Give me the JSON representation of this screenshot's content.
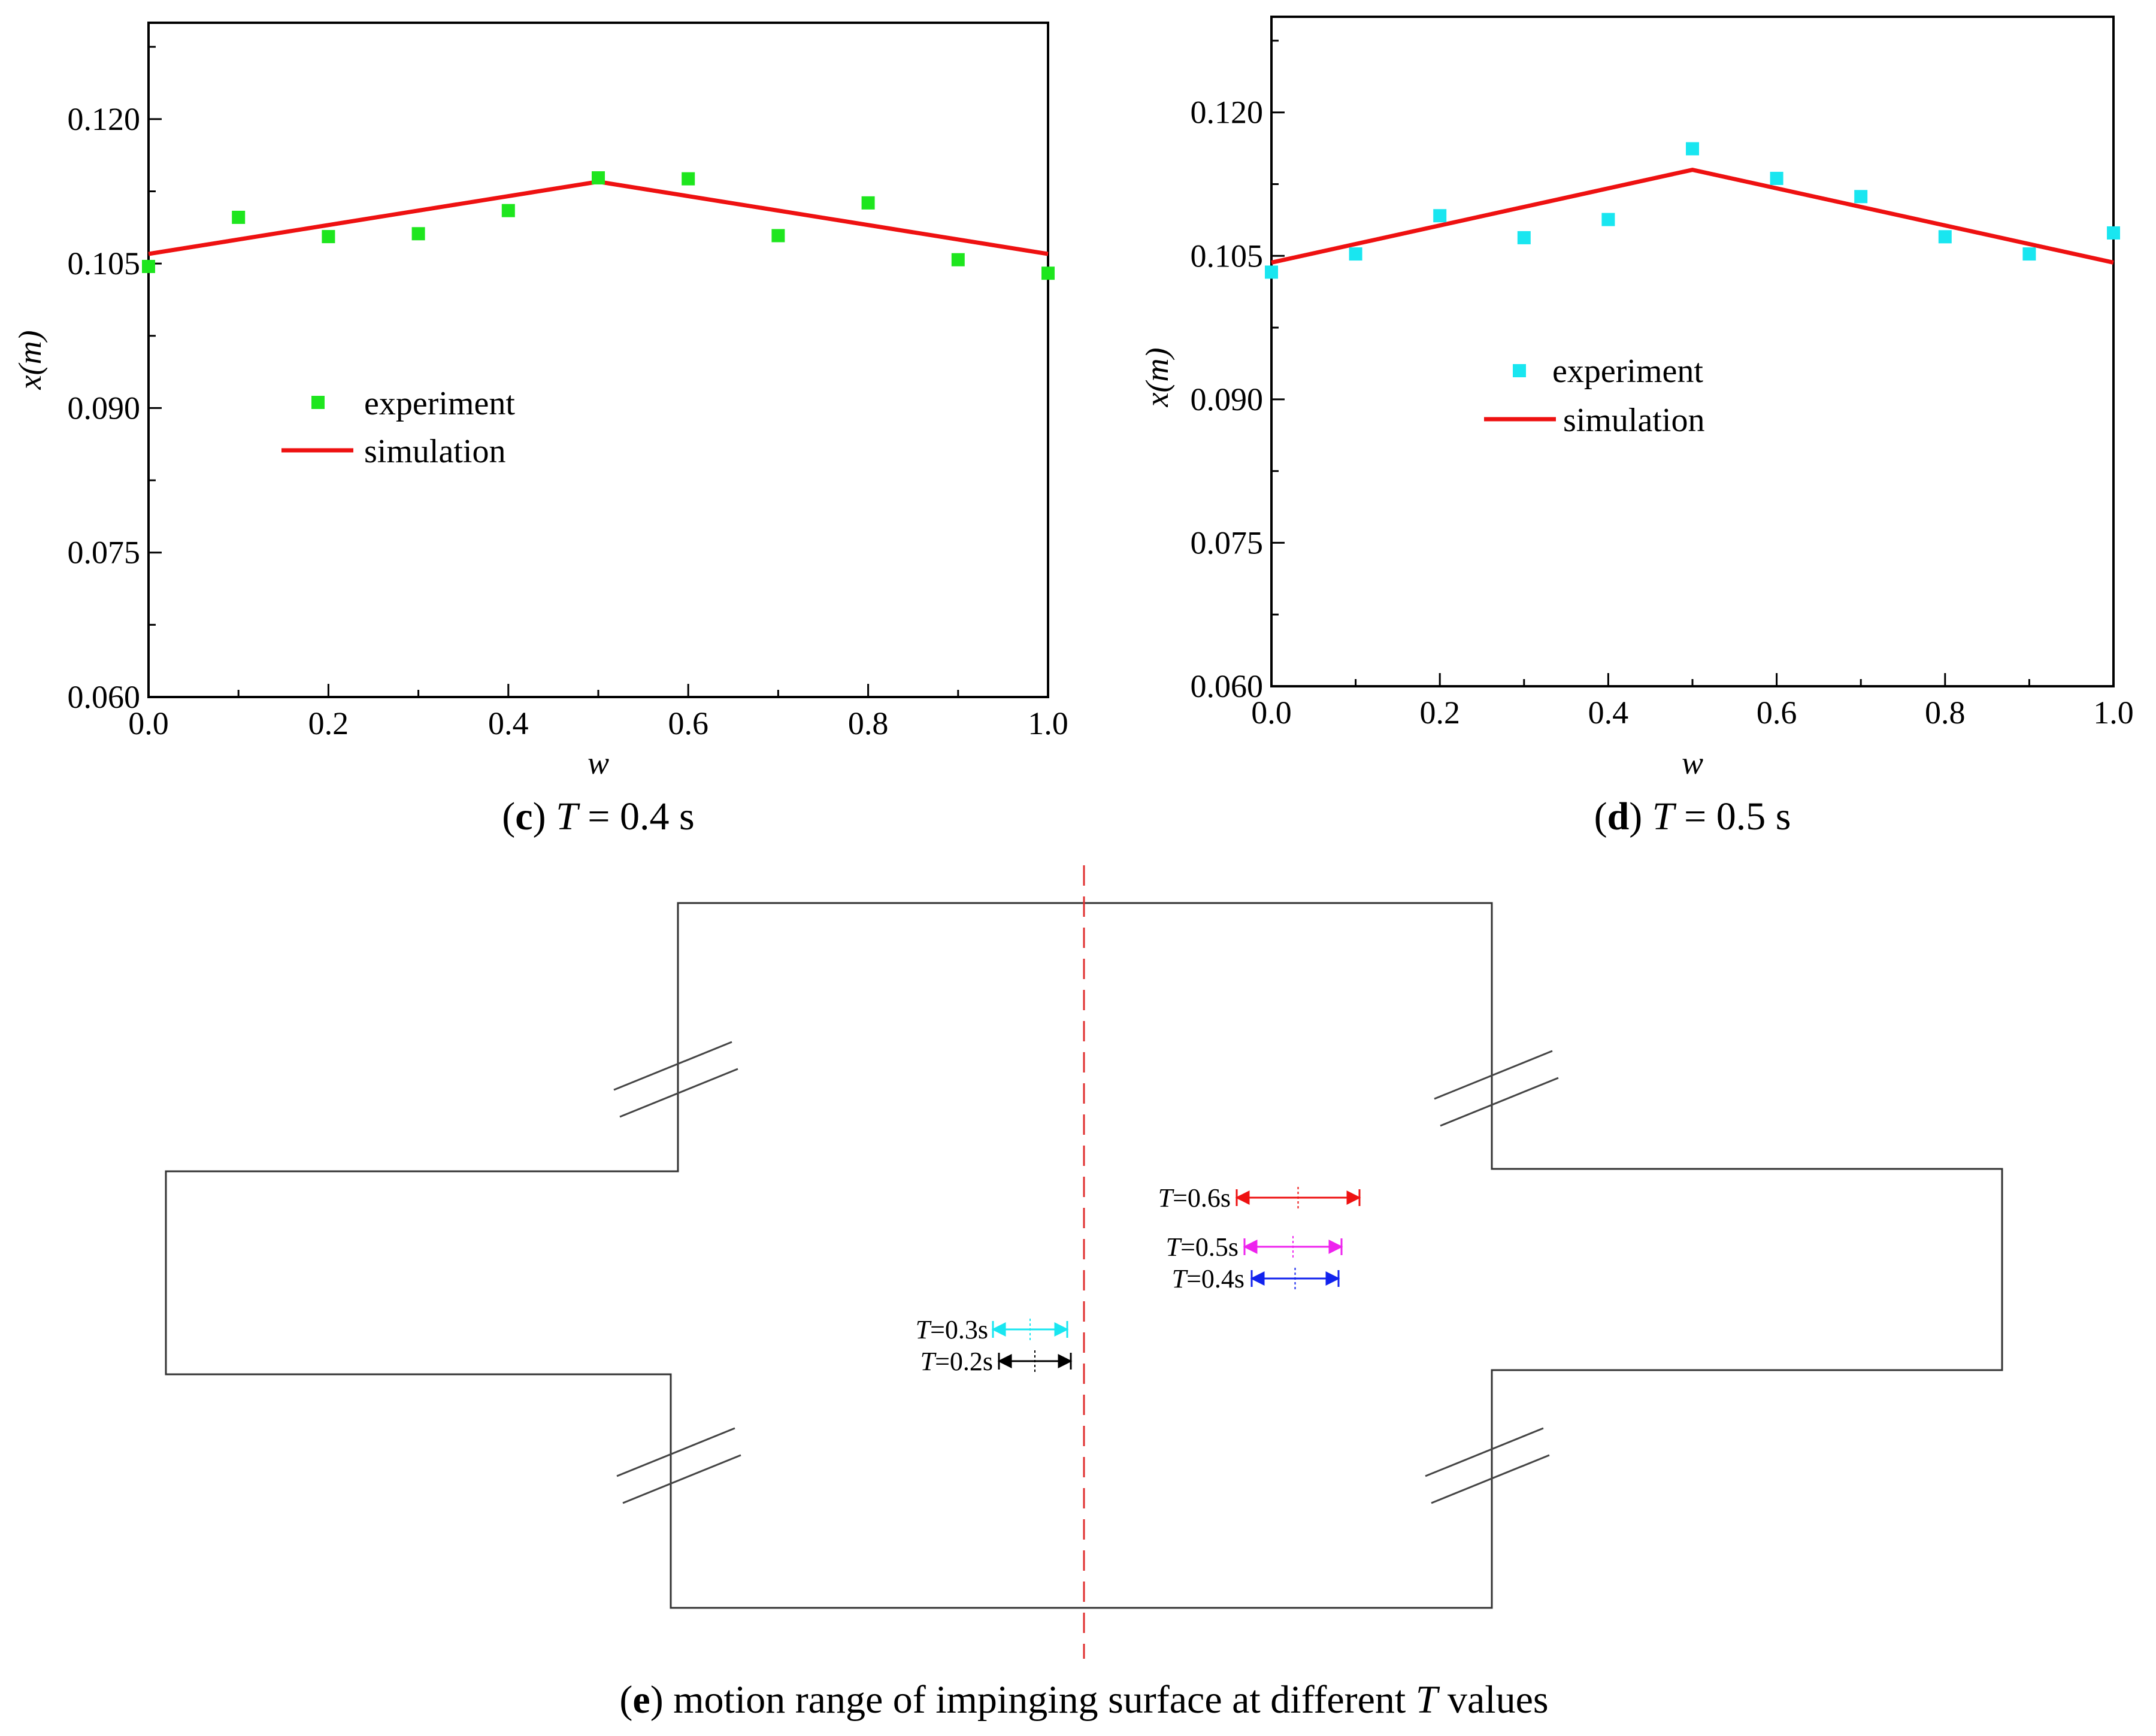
{
  "chart_data": [
    {
      "type": "scatter",
      "panel": "c",
      "caption": {
        "letter": "c",
        "param": "T",
        "rest": " = 0.4 s"
      },
      "xlabel": "w",
      "ylabel": "x(m)",
      "xlim": [
        0.0,
        1.0
      ],
      "ylim": [
        0.06,
        0.13
      ],
      "xticks": [
        "0.0",
        "0.2",
        "0.4",
        "0.6",
        "0.8",
        "1.0"
      ],
      "yticks": [
        "0.060",
        "0.075",
        "0.090",
        "0.105",
        "0.120"
      ],
      "legend_position": "center-left",
      "series": [
        {
          "name": "experiment",
          "kind": "scatter",
          "color": "#1ee61e",
          "x": [
            0.0,
            0.1,
            0.2,
            0.3,
            0.4,
            0.5,
            0.6,
            0.7,
            0.8,
            0.9,
            1.0
          ],
          "y": [
            0.1047,
            0.1098,
            0.1078,
            0.1081,
            0.1105,
            0.1139,
            0.1138,
            0.1079,
            0.1113,
            0.1054,
            0.104
          ]
        },
        {
          "name": "simulation",
          "kind": "line",
          "color": "#ee1111",
          "x": [
            0.0,
            0.5,
            1.0
          ],
          "y": [
            0.106,
            0.1135,
            0.106
          ]
        }
      ]
    },
    {
      "type": "scatter",
      "panel": "d",
      "caption": {
        "letter": "d",
        "param": "T",
        "rest": " = 0.5 s"
      },
      "xlabel": "w",
      "ylabel": "x(m)",
      "xlim": [
        0.0,
        1.0
      ],
      "ylim": [
        0.06,
        0.13
      ],
      "xticks": [
        "0.0",
        "0.2",
        "0.4",
        "0.6",
        "0.8",
        "1.0"
      ],
      "yticks": [
        "0.060",
        "0.075",
        "0.090",
        "0.105",
        "0.120"
      ],
      "legend_position": "center",
      "series": [
        {
          "name": "experiment",
          "kind": "scatter",
          "color": "#19e6f0",
          "x": [
            0.0,
            0.1,
            0.2,
            0.3,
            0.4,
            0.5,
            0.6,
            0.7,
            0.8,
            0.9,
            1.0
          ],
          "y": [
            0.1033,
            0.1052,
            0.1092,
            0.1069,
            0.1088,
            0.1162,
            0.1131,
            0.1112,
            0.107,
            0.1052,
            0.1074
          ]
        },
        {
          "name": "simulation",
          "kind": "line",
          "color": "#ee1111",
          "x": [
            0.0,
            0.5,
            1.0
          ],
          "y": [
            0.1043,
            0.114,
            0.1043
          ]
        }
      ]
    }
  ],
  "diagram": {
    "caption": {
      "letter": "e",
      "text1": " motion range of impinging surface at different ",
      "param": "T",
      "text2": " values"
    },
    "arrows": [
      {
        "param": "T",
        "value": "=0.6s",
        "color": "#ee1111"
      },
      {
        "param": "T",
        "value": "=0.5s",
        "color": "#ee22ee"
      },
      {
        "param": "T",
        "value": "=0.4s",
        "color": "#1122ee"
      },
      {
        "param": "T",
        "value": "=0.3s",
        "color": "#19e6f0"
      },
      {
        "param": "T",
        "value": "=0.2s",
        "color": "#000000"
      }
    ]
  }
}
